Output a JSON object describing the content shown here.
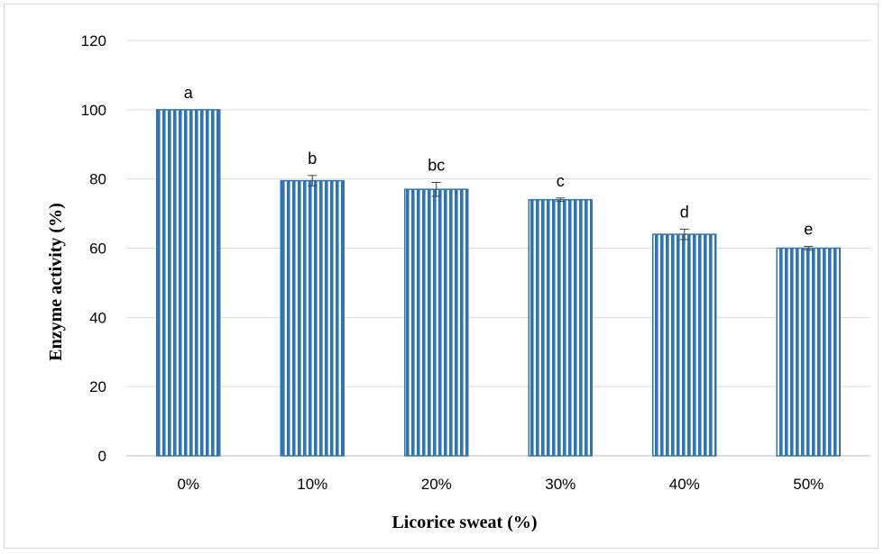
{
  "chart_data": {
    "type": "bar",
    "categories": [
      "0%",
      "10%",
      "20%",
      "30%",
      "40%",
      "50%"
    ],
    "values": [
      100,
      79.5,
      77,
      74,
      64,
      60
    ],
    "error": [
      0,
      1.5,
      2,
      0.5,
      1.5,
      0.5
    ],
    "significance_letters": [
      "a",
      "b",
      "bc",
      "c",
      "d",
      "e"
    ],
    "title": "",
    "xlabel": "Licorice sweat (%)",
    "ylabel": "Enzyme activity (%)",
    "ylim": [
      0,
      120
    ],
    "yticks": [
      0,
      20,
      40,
      60,
      80,
      100,
      120
    ],
    "grid": true,
    "legend": "none",
    "bar_fill": "striped vertical",
    "colors": {
      "bar": "#2e75b6",
      "grid": "#d9d9d9",
      "frame": "#d9d9d9"
    }
  }
}
